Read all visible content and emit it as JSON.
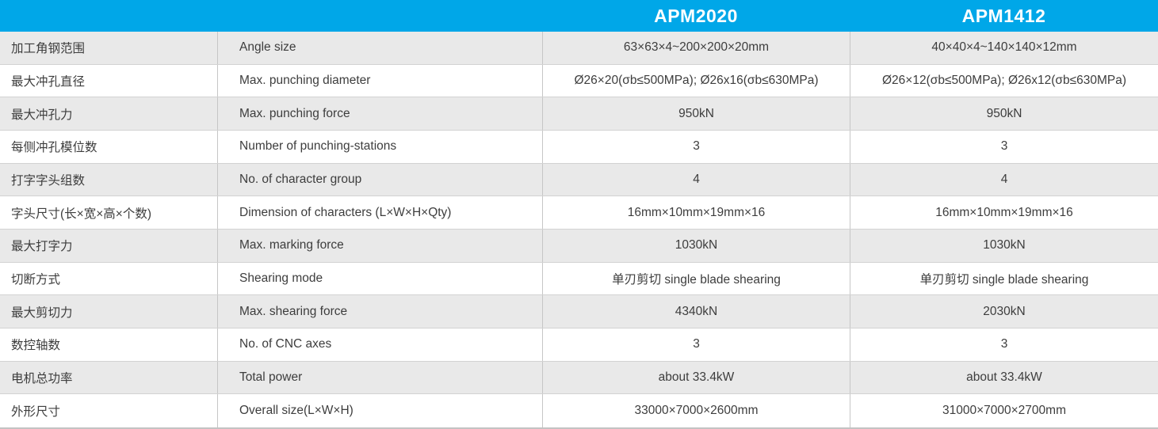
{
  "table": {
    "header": {
      "model_1": "APM2020",
      "model_2": "APM1412"
    },
    "rows": [
      {
        "cn": "加工角钢范围",
        "en": "Angle size",
        "apm2020": "63×63×4~200×200×20mm",
        "apm1412": "40×40×4~140×140×12mm"
      },
      {
        "cn": "最大冲孔直径",
        "en": "Max. punching diameter",
        "apm2020": "Ø26×20(σb≤500MPa); Ø26x16(σb≤630MPa)",
        "apm1412": "Ø26×12(σb≤500MPa); Ø26x12(σb≤630MPa)"
      },
      {
        "cn": "最大冲孔力",
        "en": "Max. punching force",
        "apm2020": "950kN",
        "apm1412": "950kN"
      },
      {
        "cn": "每侧冲孔模位数",
        "en": "Number of punching-stations",
        "apm2020": "3",
        "apm1412": "3"
      },
      {
        "cn": "打字字头组数",
        "en": "No. of character group",
        "apm2020": "4",
        "apm1412": "4"
      },
      {
        "cn": "字头尺寸(长×宽×高×个数)",
        "en": "Dimension of characters (L×W×H×Qty)",
        "apm2020": "16mm×10mm×19mm×16",
        "apm1412": "16mm×10mm×19mm×16"
      },
      {
        "cn": "最大打字力",
        "en": "Max. marking force",
        "apm2020": "1030kN",
        "apm1412": "1030kN"
      },
      {
        "cn": "切断方式",
        "en": "Shearing mode",
        "apm2020": "单刃剪切 single blade shearing",
        "apm1412": "单刃剪切 single blade shearing"
      },
      {
        "cn": "最大剪切力",
        "en": "Max. shearing force",
        "apm2020": "4340kN",
        "apm1412": "2030kN"
      },
      {
        "cn": "数控轴数",
        "en": "No. of CNC axes",
        "apm2020": "3",
        "apm1412": "3"
      },
      {
        "cn": "电机总功率",
        "en": "Total power",
        "apm2020": "about 33.4kW",
        "apm1412": "about 33.4kW"
      },
      {
        "cn": "外形尺寸",
        "en": "Overall size(L×W×H)",
        "apm2020": "33000×7000×2600mm",
        "apm1412": "31000×7000×2700mm"
      }
    ],
    "colors": {
      "header_bg": "#00a7e8",
      "header_text": "#ffffff",
      "row_bg": "#ffffff",
      "row_alt_bg": "#e9e9e9",
      "border": "#c6c6c6",
      "text": "#3d3d3d"
    }
  }
}
